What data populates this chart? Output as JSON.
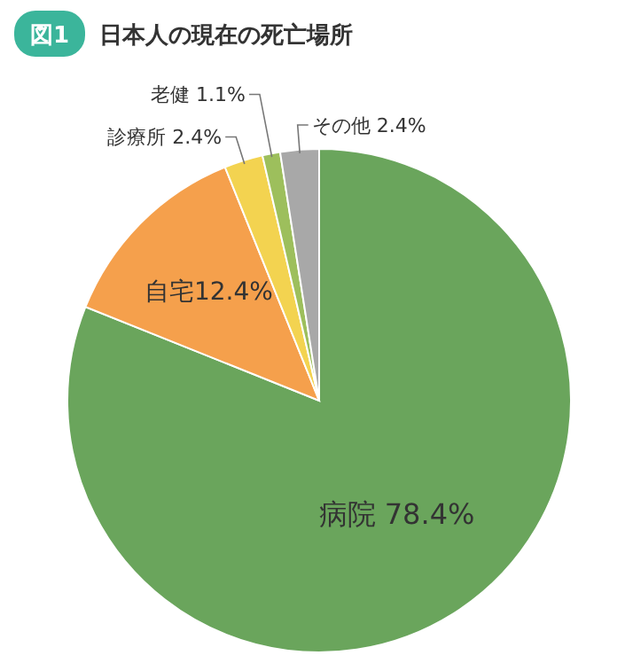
{
  "chart_data": {
    "type": "pie",
    "title": "日本人の現在の死亡場所",
    "annotations": [
      "図1"
    ],
    "categories": [
      "病院",
      "自宅",
      "診療所",
      "老健",
      "その他"
    ],
    "values": [
      78.4,
      12.4,
      2.4,
      1.1,
      2.4
    ],
    "value_labels": [
      " 78.4%",
      "12.4%",
      " 2.4%",
      " 1.1%",
      " 2.4%"
    ],
    "colors": [
      "#6aa55c",
      "#f5a04c",
      "#f3d350",
      "#9dbf5c",
      "#a8a8a8"
    ]
  }
}
